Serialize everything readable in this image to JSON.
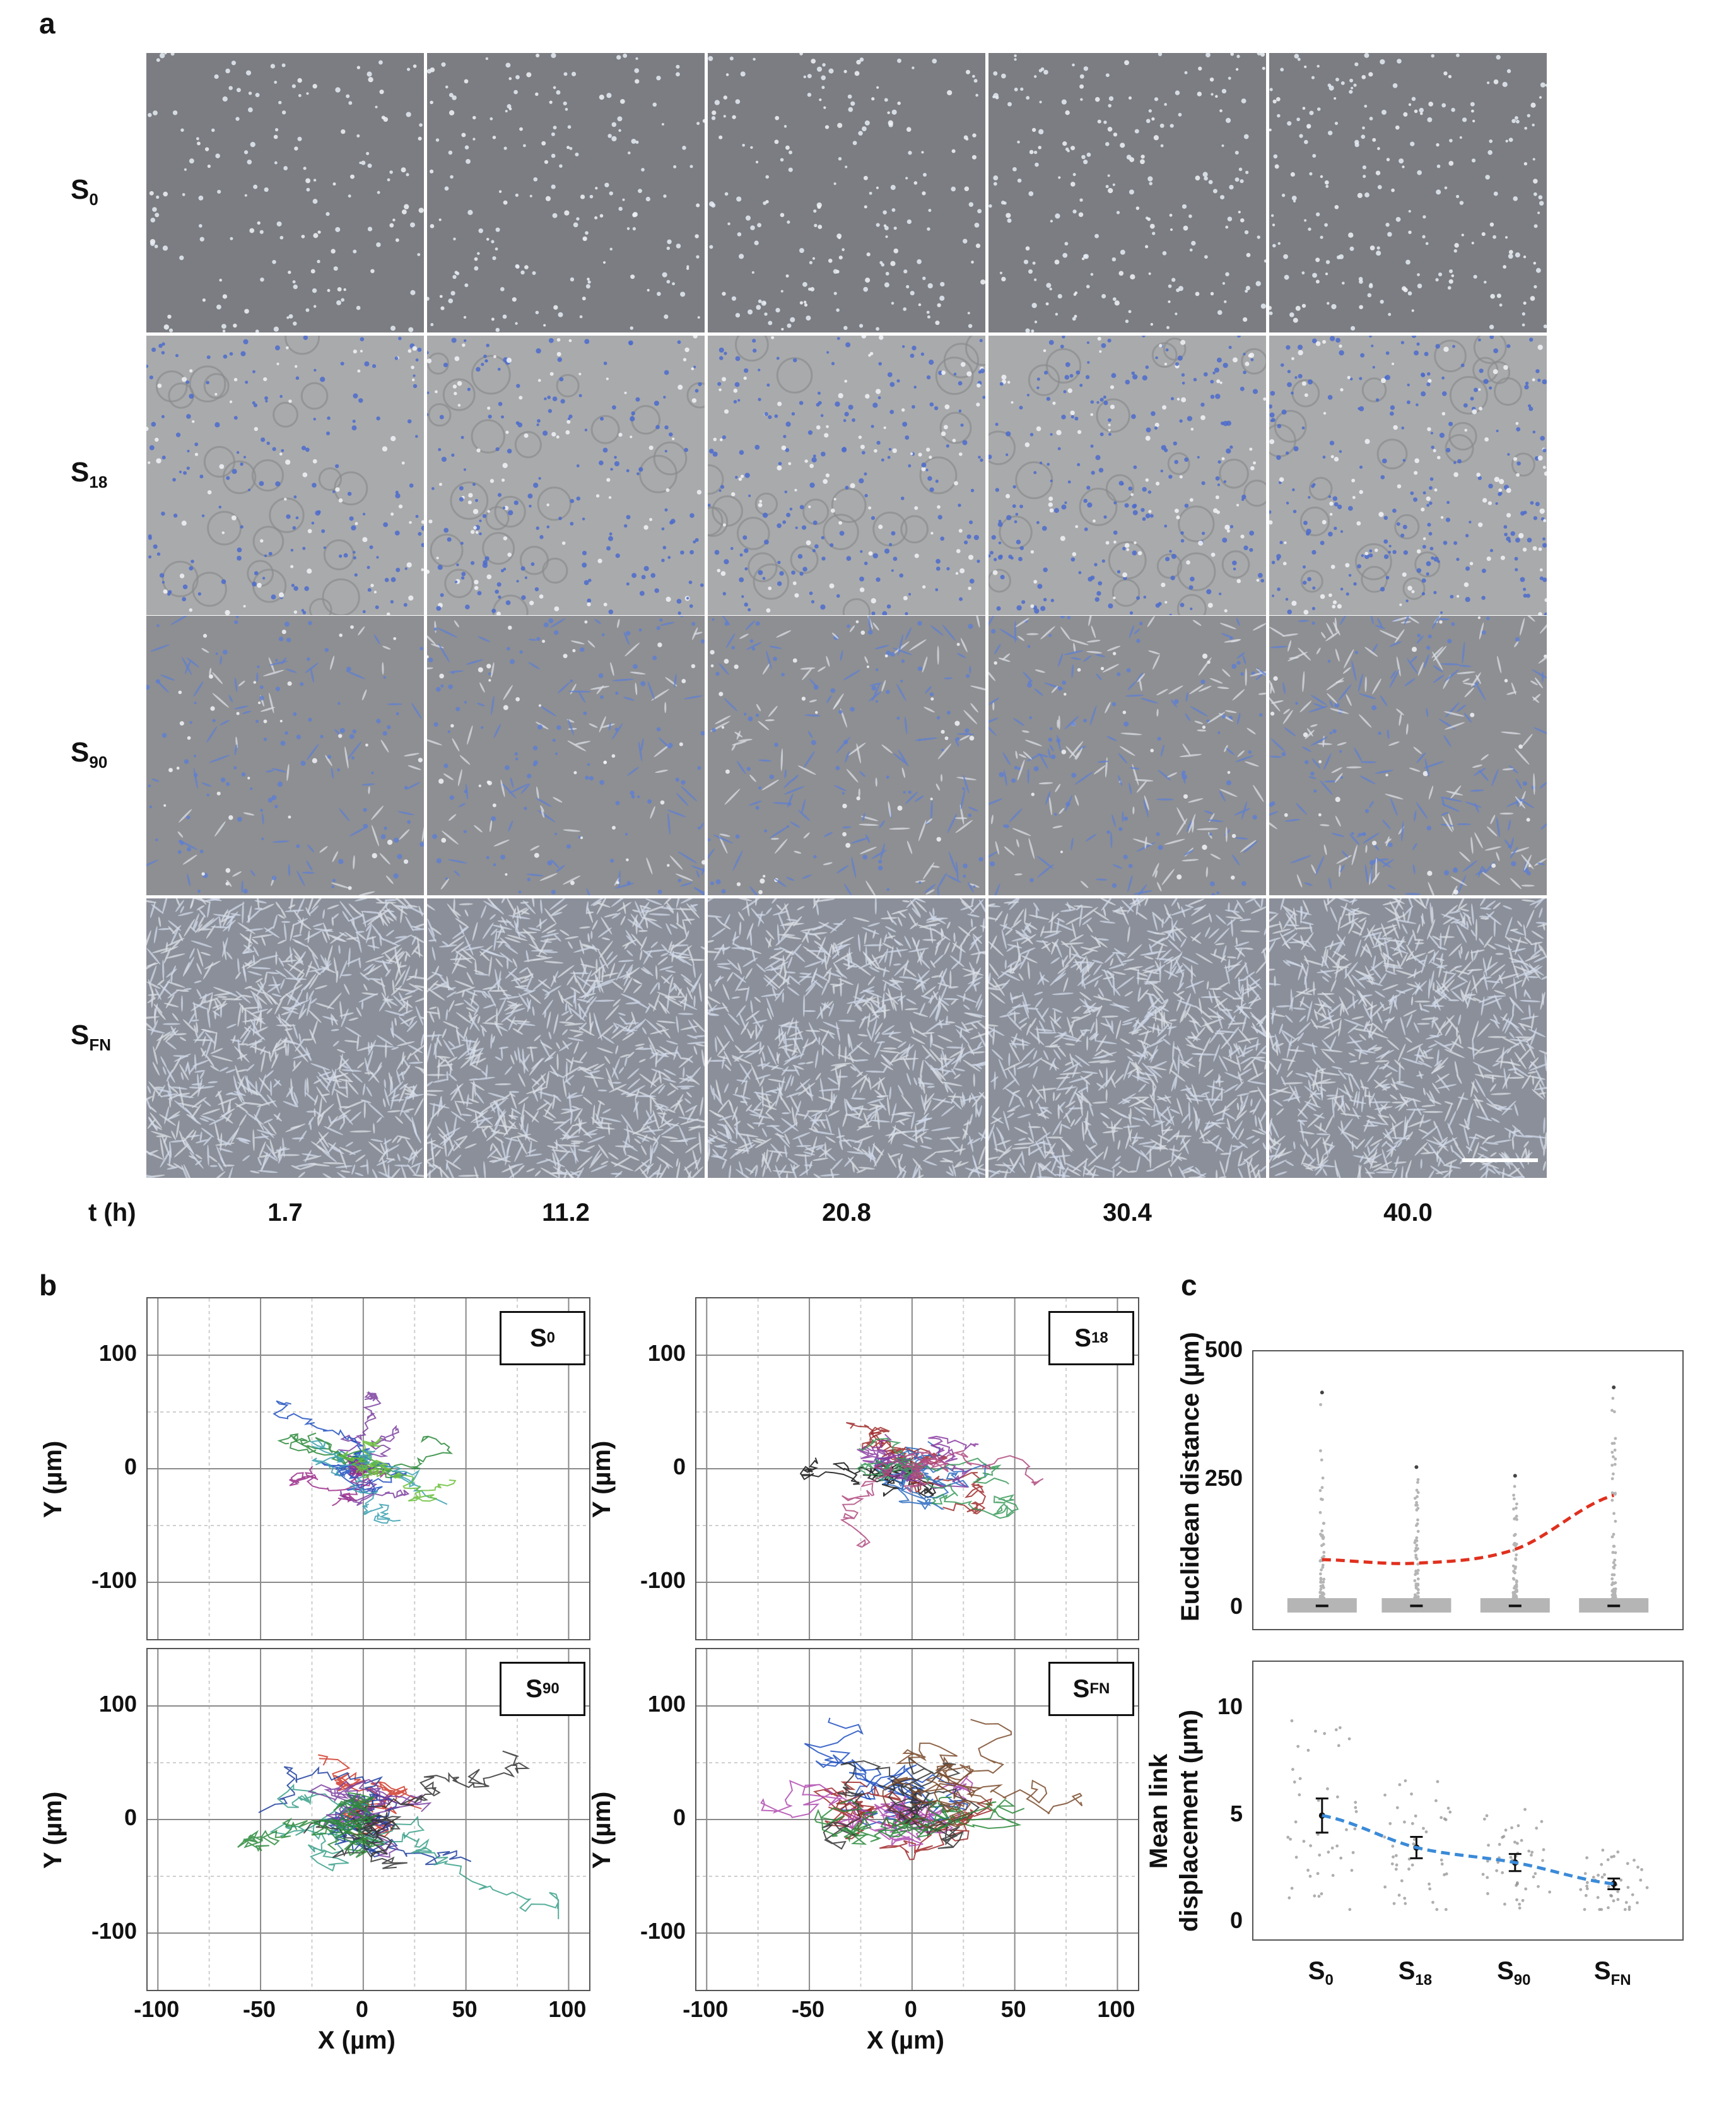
{
  "panel_a": {
    "letter": "a",
    "rows": [
      {
        "label_main": "S",
        "label_sub": "0",
        "tint": "#7b7d82",
        "cell_style": "round",
        "cell_color": "#e6ecf5"
      },
      {
        "label_main": "S",
        "label_sub": "18",
        "tint": "#a9aaac",
        "cell_style": "rings",
        "cell_color": "#4b6bcc"
      },
      {
        "label_main": "S",
        "label_sub": "90",
        "tint": "#8e8f92",
        "cell_style": "spread",
        "cell_color": "#5f7fd0"
      },
      {
        "label_main": "S",
        "label_sub": "FN",
        "tint": "#8b8f99",
        "cell_style": "dense",
        "cell_color": "#cfd8ea"
      }
    ],
    "time_axis_label": "t (h)",
    "times": [
      "1.7",
      "11.2",
      "20.8",
      "30.4",
      "40.0"
    ]
  },
  "panel_b": {
    "letter": "b",
    "plots": [
      {
        "badge_main": "S",
        "badge_sub": "0",
        "spread": 35,
        "colors": [
          "#7b3fa0",
          "#2a8a3a",
          "#1e4fbf",
          "#9a2a8a",
          "#3aa0b0",
          "#6abf3a"
        ]
      },
      {
        "badge_main": "S",
        "badge_sub": "18",
        "spread": 45,
        "colors": [
          "#111111",
          "#a02a2a",
          "#2a6abf",
          "#8a3aa0",
          "#3a9a5a",
          "#b04a80"
        ]
      },
      {
        "badge_main": "S",
        "badge_sub": "90",
        "spread": 60,
        "colors": [
          "#d03a2a",
          "#1e3f9f",
          "#3aa08a",
          "#7b3fa0",
          "#333333",
          "#2a8a3a"
        ]
      },
      {
        "badge_main": "S",
        "badge_sub": "FN",
        "spread": 70,
        "colors": [
          "#1e4fbf",
          "#a02a2a",
          "#b04ab0",
          "#333333",
          "#2a8a3a",
          "#7a4a2a"
        ]
      }
    ],
    "xlabel": "X (µm)",
    "ylabel": "Y (µm)",
    "x_ticks": [
      "-100",
      "-50",
      "0",
      "50",
      "100"
    ],
    "y_ticks": [
      "100",
      "0",
      "-100"
    ]
  },
  "panel_c": {
    "letter": "c",
    "categories_main": [
      "S",
      "S",
      "S",
      "S"
    ],
    "categories_sub": [
      "0",
      "18",
      "90",
      "FN"
    ],
    "chart_data": [
      {
        "type": "scatter",
        "ylabel": "Euclidean distance  (µm)",
        "ylim": [
          -40,
          500
        ],
        "yticks": [
          0,
          250,
          500
        ],
        "trend_color": "#e0301e",
        "trend": [
          95,
          88,
          115,
          220
        ],
        "point_color": "#b5b5b5",
        "max_points": [
          420,
          275,
          258,
          430
        ]
      },
      {
        "type": "scatter",
        "ylabel_line1": "Mean link",
        "ylabel_line2": "displacement  (µm)",
        "ylim": [
          -0.8,
          12.2
        ],
        "yticks": [
          0,
          5,
          10
        ],
        "trend_color": "#3a8ad8",
        "means": [
          5.0,
          3.5,
          2.8,
          1.8
        ],
        "errors": [
          0.8,
          0.5,
          0.4,
          0.25
        ],
        "point_color": "#8c8c8c"
      }
    ]
  }
}
